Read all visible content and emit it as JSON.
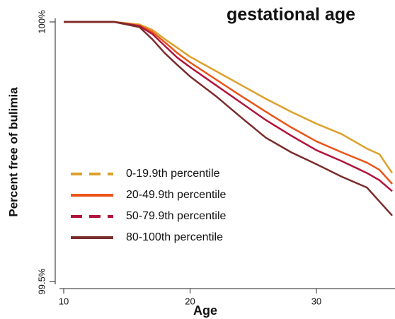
{
  "chart_data": {
    "type": "line",
    "title": "gestational age",
    "x_label": "Age",
    "y_label": "Percent free of bulimia",
    "x": [
      10,
      14,
      16,
      17,
      18,
      19,
      20,
      22,
      24,
      26,
      28,
      30,
      32,
      34,
      35,
      36
    ],
    "xlim": [
      10,
      36
    ],
    "xticks": [
      10,
      20,
      30
    ],
    "ylim": [
      99.5,
      100
    ],
    "yticks": [
      {
        "value": 99.5,
        "label": "99.5%"
      },
      {
        "value": 100,
        "label": "100%"
      }
    ],
    "legend": "lower-left",
    "series": [
      {
        "name": "0-19.9th percentile",
        "color": "#dca02a",
        "dashed": true,
        "values": [
          100,
          100,
          99.995,
          99.985,
          99.967,
          99.95,
          99.933,
          99.906,
          99.879,
          99.852,
          99.827,
          99.804,
          99.784,
          99.756,
          99.745,
          99.709
        ]
      },
      {
        "name": "20-49.9th percentile",
        "color": "#ea5418",
        "dashed": false,
        "values": [
          100,
          100,
          99.993,
          99.981,
          99.961,
          99.94,
          99.922,
          99.89,
          99.858,
          99.827,
          99.797,
          99.77,
          99.749,
          99.729,
          99.715,
          99.688
        ]
      },
      {
        "name": "50-79.9th percentile",
        "color": "#b0143c",
        "dashed": true,
        "values": [
          100,
          100,
          99.992,
          99.977,
          99.954,
          99.931,
          99.913,
          99.879,
          99.845,
          99.811,
          99.781,
          99.753,
          99.732,
          99.709,
          99.695,
          99.674
        ]
      },
      {
        "name": "80-100th percentile",
        "color": "#7a2c2c",
        "dashed": false,
        "values": [
          100,
          100,
          99.99,
          99.967,
          99.94,
          99.917,
          99.895,
          99.858,
          99.817,
          99.777,
          99.749,
          99.726,
          99.702,
          99.681,
          99.654,
          99.627
        ]
      }
    ]
  }
}
